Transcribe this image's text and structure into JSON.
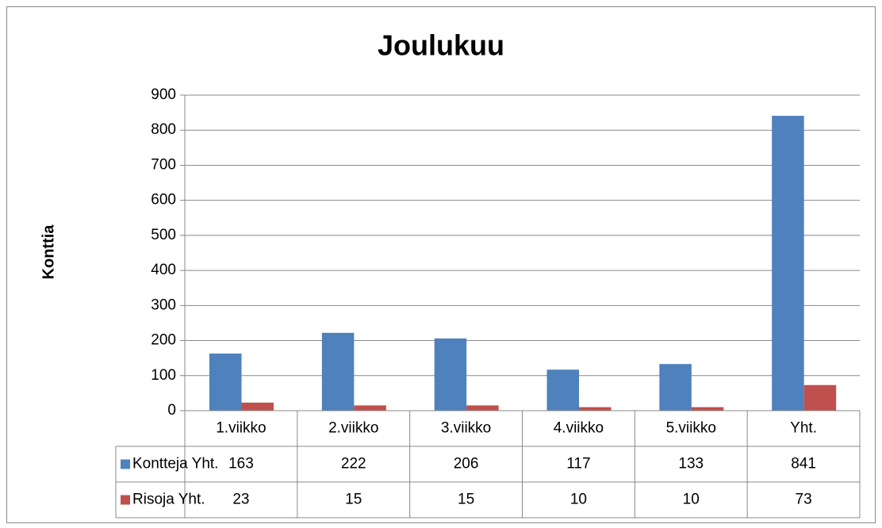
{
  "chart_data": {
    "type": "bar",
    "title": "Joulukuu",
    "y_label": "Konttia",
    "categories": [
      "1.viikko",
      "2.viikko",
      "3.viikko",
      "4.viikko",
      "5.viikko",
      "Yht."
    ],
    "series": [
      {
        "name": "Kontteja Yht.",
        "color": "#4f81bd",
        "values": [
          163,
          222,
          206,
          117,
          133,
          841
        ]
      },
      {
        "name": "Risoja Yht.",
        "color": "#c0504d",
        "values": [
          23,
          15,
          15,
          10,
          10,
          73
        ]
      }
    ],
    "ylim": [
      0,
      900
    ],
    "yticks": [
      0,
      100,
      200,
      300,
      400,
      500,
      600,
      700,
      800,
      900
    ],
    "grid": true,
    "data_table": true
  }
}
